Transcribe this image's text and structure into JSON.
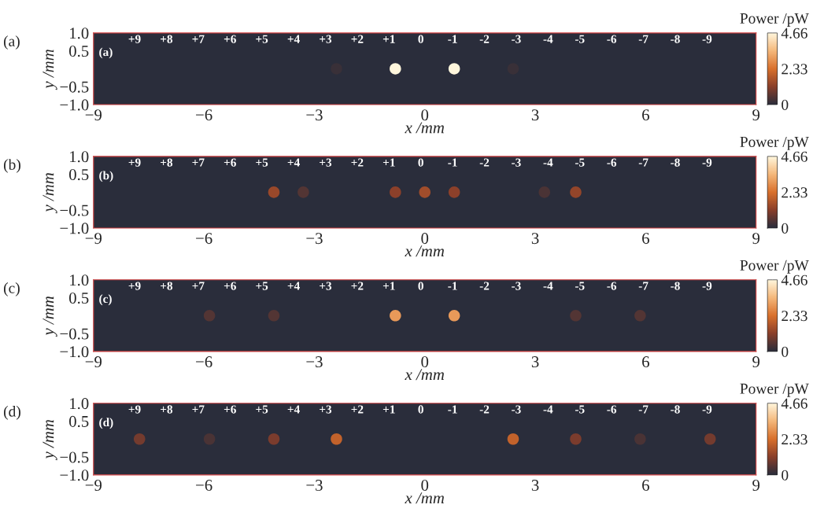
{
  "chart_data": [
    {
      "type": "scatter",
      "title": "(a)",
      "xlabel": "x /mm",
      "ylabel": "y /mm",
      "clabel": "Power /pW",
      "clim": [
        0,
        4.66
      ],
      "cticks": [
        0,
        2.33,
        4.66
      ],
      "xlim": [
        -9,
        9
      ],
      "ylim": [
        -1,
        1
      ],
      "xticks": [
        {
          "value": -9,
          "label": "−9"
        },
        {
          "value": -6,
          "label": "−6"
        },
        {
          "value": -3,
          "label": "−3"
        },
        0,
        3,
        6,
        9
      ],
      "yticks": [
        {
          "value": -1,
          "label": "−1.0"
        },
        {
          "value": -0.5,
          "label": "−0.5"
        },
        {
          "value": 0.5,
          "label": "0.5"
        },
        {
          "value": 1,
          "label": "1.0"
        }
      ],
      "series": [
        {
          "x": [
            -2.4,
            -0.8,
            0.8,
            2.4
          ],
          "values": [
            0,
            0,
            0,
            0
          ],
          "cvalues": [
            0.2,
            4.66,
            4.66,
            0.2
          ]
        }
      ],
      "annotations": [
        "(a)",
        "+9",
        "+8",
        "+7",
        "+6",
        "+5",
        "+4",
        "+3",
        "+2",
        "+1",
        "0",
        "-1",
        "-2",
        "-3",
        "-4",
        "-5",
        "-6",
        "-7",
        "-8",
        "-9"
      ]
    },
    {
      "type": "scatter",
      "title": "(b)",
      "xlabel": "x /mm",
      "ylabel": "y /mm",
      "clabel": "Power /pW",
      "clim": [
        0,
        4.66
      ],
      "cticks": [
        0,
        2.33,
        4.66
      ],
      "xlim": [
        -9,
        9
      ],
      "ylim": [
        -1,
        1
      ],
      "xticks": [
        {
          "value": -9,
          "label": "−9"
        },
        {
          "value": -6,
          "label": "−6"
        },
        {
          "value": -3,
          "label": "−3"
        },
        0,
        3,
        6,
        9
      ],
      "yticks": [
        {
          "value": -1,
          "label": "−1.0"
        },
        {
          "value": -0.5,
          "label": "−0.5"
        },
        {
          "value": 0.5,
          "label": "0.5"
        },
        {
          "value": 1,
          "label": "1.0"
        }
      ],
      "series": [
        {
          "x": [
            -4.1,
            -3.3,
            -0.8,
            0,
            0.8,
            3.25,
            4.1
          ],
          "values": [
            0,
            0,
            0,
            0,
            0,
            0,
            0
          ],
          "cvalues": [
            1.4,
            0.5,
            1.2,
            1.5,
            1.2,
            0.4,
            1.3
          ]
        }
      ],
      "annotations": [
        "(b)",
        "+9",
        "+8",
        "+7",
        "+6",
        "+5",
        "+4",
        "+3",
        "+2",
        "+1",
        "0",
        "-1",
        "-2",
        "-3",
        "-4",
        "-5",
        "-6",
        "-7",
        "-8",
        "-9"
      ]
    },
    {
      "type": "scatter",
      "title": "(c)",
      "xlabel": "x /mm",
      "ylabel": "y /mm",
      "clabel": "Power /pW",
      "clim": [
        0,
        4.66
      ],
      "cticks": [
        0,
        2.33,
        4.66
      ],
      "xlim": [
        -9,
        9
      ],
      "ylim": [
        -1,
        1
      ],
      "xticks": [
        {
          "value": -9,
          "label": "−9"
        },
        {
          "value": -6,
          "label": "−6"
        },
        {
          "value": -3,
          "label": "−3"
        },
        0,
        3,
        6,
        9
      ],
      "yticks": [
        {
          "value": -1,
          "label": "−1.0"
        },
        {
          "value": -0.5,
          "label": "−0.5"
        },
        {
          "value": 0.5,
          "label": "0.5"
        },
        {
          "value": 1,
          "label": "1.0"
        }
      ],
      "series": [
        {
          "x": [
            -5.85,
            -4.1,
            -0.8,
            0.8,
            4.1,
            5.85
          ],
          "values": [
            0,
            0,
            0,
            0,
            0,
            0
          ],
          "cvalues": [
            0.5,
            0.5,
            3.0,
            3.0,
            0.5,
            0.5
          ]
        }
      ],
      "annotations": [
        "(c)",
        "+9",
        "+8",
        "+7",
        "+6",
        "+5",
        "+4",
        "+3",
        "+2",
        "+1",
        "0",
        "-1",
        "-2",
        "-3",
        "-4",
        "-5",
        "-6",
        "-7",
        "-8",
        "-9"
      ]
    },
    {
      "type": "scatter",
      "title": "(d)",
      "xlabel": "x /mm",
      "ylabel": "y /mm",
      "clabel": "Power /pW",
      "clim": [
        0,
        4.66
      ],
      "cticks": [
        0,
        2.33,
        4.66
      ],
      "xlim": [
        -9,
        9
      ],
      "ylim": [
        -1,
        1
      ],
      "xticks": [
        {
          "value": -9,
          "label": "−9"
        },
        {
          "value": -6,
          "label": "−6"
        },
        {
          "value": -3,
          "label": "−3"
        },
        0,
        3,
        6,
        9
      ],
      "yticks": [
        {
          "value": -1,
          "label": "−1.0"
        },
        {
          "value": -0.5,
          "label": "−0.5"
        },
        {
          "value": 0.5,
          "label": "0.5"
        },
        {
          "value": 1,
          "label": "1.0"
        }
      ],
      "series": [
        {
          "x": [
            -7.75,
            -5.85,
            -4.1,
            -2.4,
            2.4,
            4.1,
            5.85,
            7.75
          ],
          "values": [
            0,
            0,
            0,
            0,
            0,
            0,
            0,
            0
          ],
          "cvalues": [
            0.9,
            0.4,
            1.0,
            2.0,
            2.0,
            1.0,
            0.4,
            0.9
          ]
        }
      ],
      "annotations": [
        "(d)",
        "+9",
        "+8",
        "+7",
        "+6",
        "+5",
        "+4",
        "+3",
        "+2",
        "+1",
        "0",
        "-1",
        "-2",
        "-3",
        "-4",
        "-5",
        "-6",
        "-7",
        "-8",
        "-9"
      ]
    }
  ]
}
